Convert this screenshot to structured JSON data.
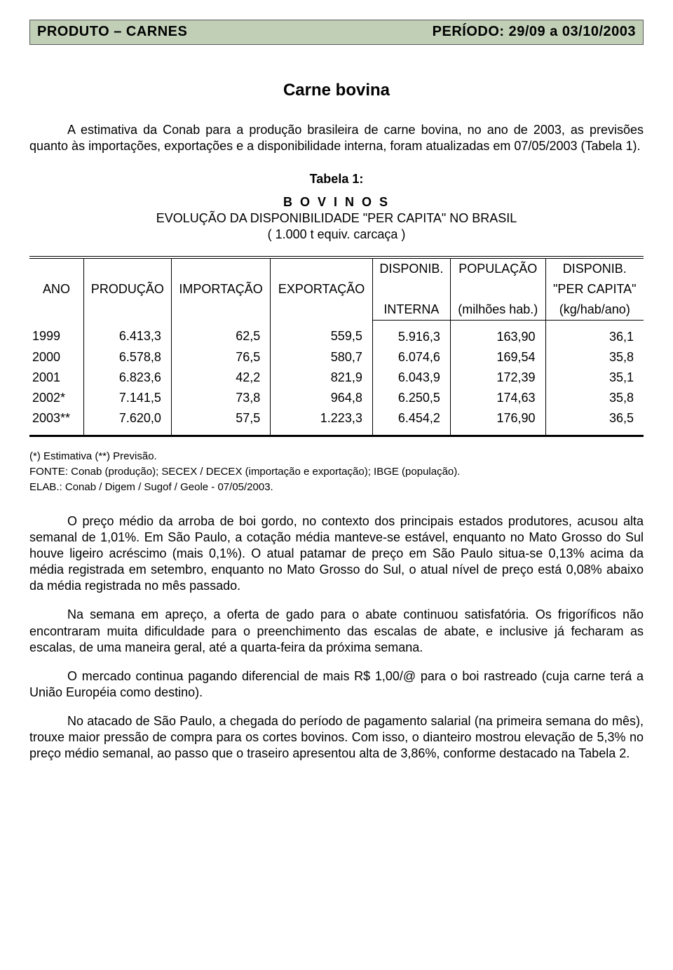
{
  "header": {
    "left": "PRODUTO – CARNES",
    "right": "PERÍODO:  29/09 a 03/10/2003"
  },
  "title": "Carne bovina",
  "intro": "A estimativa da Conab para a produção brasileira de carne bovina, no ano de 2003, as previsões quanto às importações, exportações e a disponibilidade interna, foram atualizadas em 07/05/2003 (Tabela 1).",
  "table1": {
    "caption": "Tabela 1:",
    "species": "B O V I N O S",
    "subtitle": "EVOLUÇÃO DA DISPONIBILIDADE \"PER CAPITA\" NO BRASIL",
    "unit": "( 1.000 t  equiv. carcaça )",
    "columns": {
      "ano": "ANO",
      "producao": "PRODUÇÃO",
      "importacao": "IMPORTAÇÃO",
      "exportacao": "EXPORTAÇÃO",
      "disponib_top": "DISPONIB.",
      "disponib_bot": "INTERNA",
      "pop_top": "POPULAÇÃO",
      "pop_bot": "(milhões hab.)",
      "percap_top": "DISPONIB.",
      "percap_mid": "\"PER CAPITA\"",
      "percap_bot": "(kg/hab/ano)"
    },
    "rows": [
      {
        "ano": "1999",
        "prod": "6.413,3",
        "imp": "62,5",
        "exp": "559,5",
        "disp": "5.916,3",
        "pop": "163,90",
        "pc": "36,1"
      },
      {
        "ano": "2000",
        "prod": "6.578,8",
        "imp": "76,5",
        "exp": "580,7",
        "disp": "6.074,6",
        "pop": "169,54",
        "pc": "35,8"
      },
      {
        "ano": "2001",
        "prod": "6.823,6",
        "imp": "42,2",
        "exp": "821,9",
        "disp": "6.043,9",
        "pop": "172,39",
        "pc": "35,1"
      },
      {
        "ano": "2002*",
        "prod": "7.141,5",
        "imp": "73,8",
        "exp": "964,8",
        "disp": "6.250,5",
        "pop": "174,63",
        "pc": "35,8"
      },
      {
        "ano": "2003**",
        "prod": "7.620,0",
        "imp": "57,5",
        "exp": "1.223,3",
        "disp": "6.454,2",
        "pop": "176,90",
        "pc": "36,5"
      }
    ]
  },
  "notes": {
    "n1": "(*) Estimativa  (**) Previsão.",
    "n2": "FONTE: Conab (produção); SECEX / DECEX (importação e exportação); IBGE (população).",
    "n3": "ELAB.: Conab / Digem / Sugof / Geole - 07/05/2003."
  },
  "paras": {
    "p1": "O preço médio da arroba de boi gordo, no contexto dos principais estados produtores, acusou alta semanal de 1,01%. Em São Paulo, a cotação média manteve-se estável, enquanto no Mato Grosso do Sul houve ligeiro acréscimo (mais 0,1%). O atual patamar de preço em São Paulo situa-se 0,13% acima da média registrada em setembro, enquanto no Mato Grosso do Sul, o atual nível de preço está 0,08% abaixo da média registrada no mês passado.",
    "p2": "Na semana em apreço, a oferta de gado para o abate continuou satisfatória. Os frigoríficos não encontraram muita dificuldade para o preenchimento das escalas de abate, e inclusive já fecharam as escalas, de uma maneira geral, até a quarta-feira da próxima semana.",
    "p3": "O mercado continua pagando diferencial de mais R$ 1,00/@ para o boi rastreado (cuja carne terá a União Européia como destino).",
    "p4": "No atacado de São Paulo, a chegada do período de pagamento salarial (na primeira semana do mês), trouxe maior pressão de compra para os cortes bovinos. Com isso, o dianteiro mostrou elevação de 5,3% no preço médio semanal, ao passo que o traseiro apresentou alta de 3,86%, conforme destacado na Tabela 2."
  }
}
